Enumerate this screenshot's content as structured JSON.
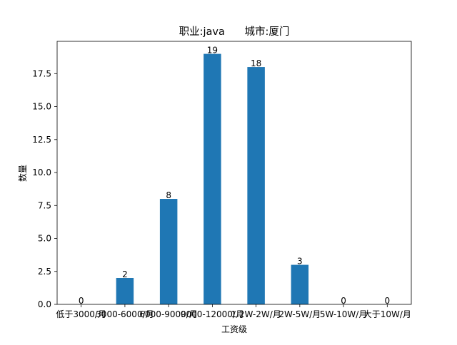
{
  "chart_data": {
    "type": "bar",
    "title": "职业:java      城市:厦门",
    "xlabel": "工资级",
    "ylabel": "数量",
    "categories": [
      "低于3000/月",
      "3000-6000/月",
      "6000-9000/月",
      "9000-12000/月",
      "1.2W-2W/月",
      "2W-5W/月",
      "5W-10W/月",
      "大于10W/月"
    ],
    "values": [
      0,
      2,
      8,
      19,
      18,
      3,
      0,
      0
    ],
    "ylim": [
      0,
      19.95
    ],
    "yticks": [
      0.0,
      2.5,
      5.0,
      7.5,
      10.0,
      12.5,
      15.0,
      17.5
    ],
    "ytick_labels": [
      "0.0",
      "2.5",
      "5.0",
      "7.5",
      "10.0",
      "12.5",
      "15.0",
      "17.5"
    ],
    "grid": false,
    "bar_color": "#1f77b4"
  }
}
